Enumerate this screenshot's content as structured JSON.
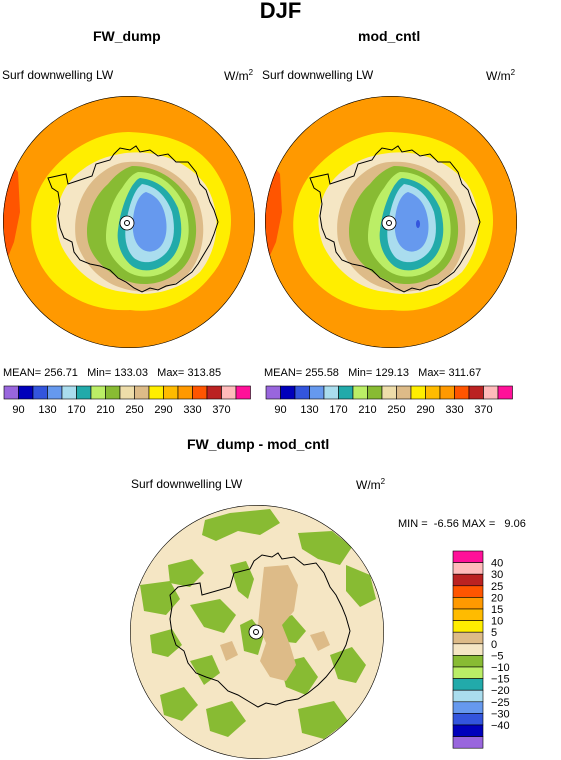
{
  "title": "DJF",
  "panels": [
    {
      "title": "FW_dump",
      "variable": "Surf downwelling LW",
      "units": "W/m",
      "units_sup": "2",
      "mean_label": "MEAN=",
      "mean": "256.71",
      "min_label": "Min=",
      "min": "133.03",
      "max_label": "Max=",
      "max": "313.85"
    },
    {
      "title": "mod_cntl",
      "variable": "Surf downwelling LW",
      "units": "W/m",
      "units_sup": "2",
      "mean_label": "MEAN=",
      "mean": "255.58",
      "min_label": "Min=",
      "min": "129.13",
      "max_label": "Max=",
      "max": "311.67"
    },
    {
      "title": "FW_dump - mod_cntl",
      "variable": "Surf downwelling LW",
      "units": "W/m",
      "units_sup": "2",
      "min_label": "MIN =",
      "min": "-6.56",
      "max_label": "MAX =",
      "max": "9.06"
    }
  ],
  "abs_colorbar": {
    "colors": [
      "#9966dd",
      "#0000bb",
      "#3355dd",
      "#6699ee",
      "#aaddee",
      "#22aaaa",
      "#bbee66",
      "#88bb33",
      "#eeddaa",
      "#ddbb88",
      "#ffee00",
      "#ffbb00",
      "#ff9900",
      "#ff5500",
      "#bb2222",
      "#ffbbbb",
      "#ff1199"
    ],
    "labels": [
      "90",
      "130",
      "170",
      "210",
      "250",
      "290",
      "330",
      "370"
    ]
  },
  "diff_colorbar": {
    "colors": [
      "#ff1199",
      "#ffbbbb",
      "#bb2222",
      "#ff5500",
      "#ff9900",
      "#ffbb00",
      "#ffee00",
      "#ddbb88",
      "#f5e6c4",
      "#88bb33",
      "#bbee66",
      "#22aaaa",
      "#aaddee",
      "#6699ee",
      "#3355dd",
      "#0000bb",
      "#9966dd"
    ],
    "labels": [
      "40",
      "30",
      "25",
      "20",
      "15",
      "10",
      "5",
      "0",
      "−5",
      "−10",
      "−15",
      "−20",
      "−25",
      "−30",
      "−40"
    ]
  }
}
